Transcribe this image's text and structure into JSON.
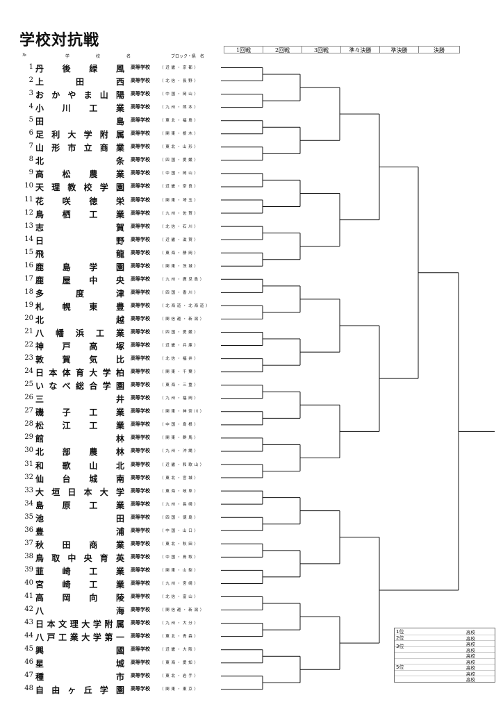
{
  "title": "学校対抗戦",
  "column_headers": {
    "no": "№",
    "gaku": "学",
    "kou": "校",
    "mei": "名",
    "block": "ブロック・県　名"
  },
  "rounds": [
    "1回戦",
    "2回戦",
    "3回戦",
    "準々決勝",
    "準決勝",
    "決勝"
  ],
  "kotogakko": "高等学校",
  "schools": [
    {
      "no": "1",
      "name": [
        "丹",
        "後",
        "緑",
        "風"
      ],
      "region": "（ 近 畿 ・ 京 都 ）"
    },
    {
      "no": "2",
      "name": [
        "上",
        "田",
        "西"
      ],
      "region": "（ 北 信 ・ 長 野 ）"
    },
    {
      "no": "3",
      "name": [
        "お",
        "か",
        "や",
        "ま",
        "山",
        "陽"
      ],
      "region": "（ 中 国 ・ 岡 山 ）"
    },
    {
      "no": "4",
      "name": [
        "小",
        "川",
        "工",
        "業"
      ],
      "region": "（ 九 州 ・ 熊 本 ）"
    },
    {
      "no": "5",
      "name": [
        "田",
        "島"
      ],
      "region": "（ 東 北 ・ 福 島 ）"
    },
    {
      "no": "6",
      "name": [
        "足",
        "利",
        "大",
        "学",
        "附",
        "属"
      ],
      "region": "（ 関 東 ・ 栃 木 ）"
    },
    {
      "no": "7",
      "name": [
        "山",
        "形",
        "市",
        "立",
        "商",
        "業"
      ],
      "region": "（ 東 北 ・ 山 形 ）"
    },
    {
      "no": "8",
      "name": [
        "北",
        "条"
      ],
      "region": "（ 四 国 ・ 愛 媛 ）"
    },
    {
      "no": "9",
      "name": [
        "高",
        "松",
        "農",
        "業"
      ],
      "region": "（ 中 国 ・ 岡 山 ）"
    },
    {
      "no": "10",
      "name": [
        "天",
        "理",
        "教",
        "校",
        "学",
        "園"
      ],
      "region": "（ 近 畿 ・ 奈 良 ）"
    },
    {
      "no": "11",
      "name": [
        "花",
        "咲",
        "徳",
        "栄"
      ],
      "region": "（ 関 東 ・ 埼 玉 ）"
    },
    {
      "no": "12",
      "name": [
        "鳥",
        "栖",
        "工",
        "業"
      ],
      "region": "（ 九 州 ・ 佐 賀 ）"
    },
    {
      "no": "13",
      "name": [
        "志",
        "賀"
      ],
      "region": "（ 北 信 ・ 石 川 ）"
    },
    {
      "no": "14",
      "name": [
        "日",
        "野"
      ],
      "region": "（ 近 畿 ・ 滋 賀 ）"
    },
    {
      "no": "15",
      "name": [
        "飛",
        "龍"
      ],
      "region": "（ 東 海 ・ 静 岡 ）"
    },
    {
      "no": "16",
      "name": [
        "鹿",
        "島",
        "学",
        "園"
      ],
      "region": "（ 関 東 ・ 茨 城 ）"
    },
    {
      "no": "17",
      "name": [
        "鹿",
        "屋",
        "中",
        "央"
      ],
      "region": "（ 九 州 ・ 鹿 児 島 ）"
    },
    {
      "no": "18",
      "name": [
        "多",
        "度",
        "津"
      ],
      "region": "（ 四 国 ・ 香 川 ）"
    },
    {
      "no": "19",
      "name": [
        "札",
        "幌",
        "東",
        "豊"
      ],
      "region": "（ 北 海 道 ・ 北 海 道 ）"
    },
    {
      "no": "20",
      "name": [
        "北",
        "越"
      ],
      "region": "（ 関 信 越 ・ 新 潟 ）"
    },
    {
      "no": "21",
      "name": [
        "八",
        "幡",
        "浜",
        "工",
        "業"
      ],
      "region": "（ 四 国 ・ 愛 媛 ）"
    },
    {
      "no": "22",
      "name": [
        "神",
        "戸",
        "高",
        "塚"
      ],
      "region": "（ 近 畿 ・ 兵 庫 ）"
    },
    {
      "no": "23",
      "name": [
        "敦",
        "賀",
        "気",
        "比"
      ],
      "region": "（ 北 信 ・ 福 井 ）"
    },
    {
      "no": "24",
      "name": [
        "日",
        "本",
        "体",
        "育",
        "大",
        "学",
        "柏"
      ],
      "region": "（ 関 東 ・ 千 葉 ）"
    },
    {
      "no": "25",
      "name": [
        "い",
        "な",
        "べ",
        "総",
        "合",
        "学",
        "園"
      ],
      "region": "（ 東 海 ・ 三 重 ）"
    },
    {
      "no": "26",
      "name": [
        "三",
        "井"
      ],
      "region": "（ 九 州 ・ 福 岡 ）"
    },
    {
      "no": "27",
      "name": [
        "磯",
        "子",
        "工",
        "業"
      ],
      "region": "（ 関 東 ・ 神 奈 川 ）"
    },
    {
      "no": "28",
      "name": [
        "松",
        "江",
        "工",
        "業"
      ],
      "region": "（ 中 国 ・ 島 根 ）"
    },
    {
      "no": "29",
      "name": [
        "館",
        "林"
      ],
      "region": "（ 関 東 ・ 群 馬 ）"
    },
    {
      "no": "30",
      "name": [
        "北",
        "部",
        "農",
        "林"
      ],
      "region": "（ 九 州 ・ 沖 縄 ）"
    },
    {
      "no": "31",
      "name": [
        "和",
        "歌",
        "山",
        "北"
      ],
      "region": "（ 近 畿 ・ 和 歌 山 ）"
    },
    {
      "no": "32",
      "name": [
        "仙",
        "台",
        "城",
        "南"
      ],
      "region": "（ 東 北 ・ 宮 城 ）"
    },
    {
      "no": "33",
      "name": [
        "大",
        "垣",
        "日",
        "本",
        "大",
        "学"
      ],
      "region": "（ 東 海 ・ 岐 阜 ）"
    },
    {
      "no": "34",
      "name": [
        "島",
        "原",
        "工",
        "業"
      ],
      "region": "（ 九 州 ・ 長 崎 ）"
    },
    {
      "no": "35",
      "name": [
        "池",
        "田"
      ],
      "region": "（ 四 国 ・ 徳 島 ）"
    },
    {
      "no": "36",
      "name": [
        "豊",
        "浦"
      ],
      "region": "（ 中 国 ・ 山 口 ）"
    },
    {
      "no": "37",
      "name": [
        "秋",
        "田",
        "商",
        "業"
      ],
      "region": "（ 東 北 ・ 秋 田 ）"
    },
    {
      "no": "38",
      "name": [
        "鳥",
        "取",
        "中",
        "央",
        "育",
        "英"
      ],
      "region": "（ 中 国 ・ 鳥 取 ）"
    },
    {
      "no": "39",
      "name": [
        "韮",
        "崎",
        "工",
        "業"
      ],
      "region": "（ 関 東 ・ 山 梨 ）"
    },
    {
      "no": "40",
      "name": [
        "宮",
        "崎",
        "工",
        "業"
      ],
      "region": "（ 九 州 ・ 宮 崎 ）"
    },
    {
      "no": "41",
      "name": [
        "高",
        "岡",
        "向",
        "陵"
      ],
      "region": "（ 北 信 ・ 富 山 ）"
    },
    {
      "no": "42",
      "name": [
        "八",
        "海"
      ],
      "region": "（ 関 信 越 ・ 新 潟 ）"
    },
    {
      "no": "43",
      "name": [
        "日",
        "本",
        "文",
        "理",
        "大",
        "学",
        "附",
        "属"
      ],
      "region": "（ 九 州 ・ 大 分 ）"
    },
    {
      "no": "44",
      "name": [
        "八",
        "戸",
        "工",
        "業",
        "大",
        "学",
        "第",
        "一"
      ],
      "region": "（ 東 北 ・ 青 森 ）"
    },
    {
      "no": "45",
      "name": [
        "興",
        "國"
      ],
      "region": "（ 近 畿 ・ 大 阪 ）"
    },
    {
      "no": "46",
      "name": [
        "星",
        "城"
      ],
      "region": "（ 東 海 ・ 愛 知 ）"
    },
    {
      "no": "47",
      "name": [
        "種",
        "市"
      ],
      "region": "（ 東 北 ・ 岩 手 ）"
    },
    {
      "no": "48",
      "name": [
        "自",
        "由",
        "ヶ",
        "丘",
        "学",
        "園"
      ],
      "region": "（ 関 東 ・ 東 京 ）"
    }
  ],
  "results": {
    "places": [
      "1位",
      "2位",
      "3位",
      "5位"
    ],
    "school_label": "高校"
  },
  "colors": {
    "line": "#111111",
    "text": "#111111"
  }
}
